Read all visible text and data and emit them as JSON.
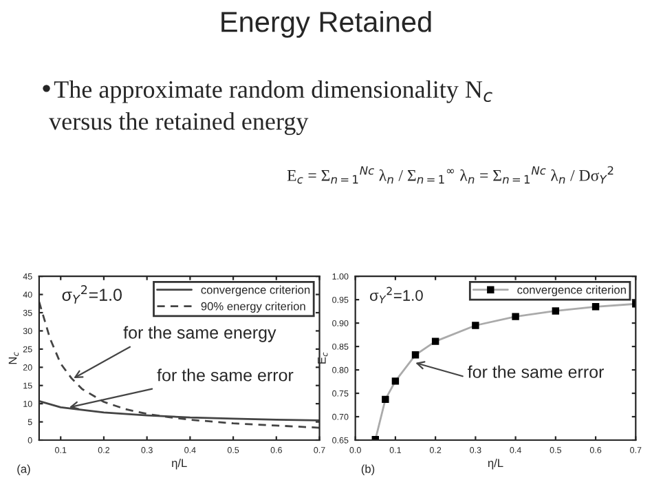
{
  "chart_data": [
    {
      "type": "other",
      "title": "Energy Retained",
      "annotations": [
        "•The approximate random dimensionality N$_{c}$",
        "versus the retained energy",
        "E$_{c}$ = Σ$_{n=1}$$^{Nc}$ λ$_{n}$ / Σ$_{n=1}$$^{∞}$ λ$_{n}$ = Σ$_{n=1}$$^{Nc}$ λ$_{n}$ / Dσ$_{Y}$$^{2}$"
      ]
    },
    {
      "type": "line",
      "xlabel": "η/L",
      "ylabel": "N$_{c}$",
      "xlim": [
        0.05,
        0.7
      ],
      "xticks": [
        0.1,
        0.2,
        0.3,
        0.4,
        0.5,
        0.6,
        0.7
      ],
      "ylim": [
        0,
        45
      ],
      "yticks": [
        0,
        5,
        10,
        15,
        20,
        25,
        30,
        35,
        40,
        45
      ],
      "legend": "top right",
      "grid": false,
      "marker": "none",
      "series": [
        {
          "name": "convergence criterion",
          "color": "#444444",
          "line_style": "solid",
          "x": [
            0.05,
            0.1,
            0.15,
            0.2,
            0.3,
            0.4,
            0.5,
            0.6,
            0.7
          ],
          "values": [
            10.7,
            9,
            8.3,
            7.6,
            6.8,
            6.2,
            5.9,
            5.6,
            5.4
          ]
        },
        {
          "name": "90% energy criterion",
          "color": "#444444",
          "line_style": "dashed",
          "x": [
            0.05,
            0.075,
            0.1,
            0.125,
            0.15,
            0.2,
            0.25,
            0.3,
            0.35,
            0.4,
            0.5,
            0.6,
            0.7
          ],
          "values": [
            38,
            28,
            21,
            17,
            14,
            10.5,
            8.5,
            7.2,
            6.3,
            5.6,
            4.6,
            4,
            3.4
          ]
        }
      ],
      "annotations": [
        "σ$_{Y}$$^{2}$=1.0",
        "(a)",
        {
          "text": "for the same energy",
          "x": 0.13,
          "y": 17
        },
        {
          "text": "for the same error",
          "x": 0.12,
          "y": 9
        }
      ]
    },
    {
      "type": "line",
      "xlabel": "η/L",
      "ylabel": "E$_{c}$",
      "xlim": [
        0,
        0.7
      ],
      "xticks": [
        {
          "value": 0,
          "label": "0.0"
        },
        0.1,
        0.2,
        0.3,
        0.4,
        0.5,
        0.6,
        0.7
      ],
      "ylim": [
        0.65,
        1.0
      ],
      "yticks": [
        0.65,
        {
          "value": 0.7,
          "label": "0.70"
        },
        0.75,
        {
          "value": 0.8,
          "label": "0.80"
        },
        0.85,
        {
          "value": 0.9,
          "label": "0.90"
        },
        0.95,
        {
          "value": 1.0,
          "label": "1.00"
        }
      ],
      "legend": "top right",
      "grid": false,
      "marker": "square",
      "series": [
        {
          "name": "convergence criterion",
          "color": "#aaaaaa",
          "line_style": "solid",
          "x": [
            0.05,
            0.075,
            0.1,
            0.15,
            0.2,
            0.3,
            0.4,
            0.5,
            0.6,
            0.7
          ],
          "values": [
            0.651,
            0.737,
            0.776,
            0.832,
            0.861,
            0.895,
            0.914,
            0.926,
            0.935,
            0.941
          ]
        }
      ],
      "annotations": [
        "σ$_{Y}$$^{2}$=1.0",
        "(b)",
        {
          "text": "for the same error",
          "x": 0.15,
          "y": 0.815
        }
      ]
    }
  ]
}
